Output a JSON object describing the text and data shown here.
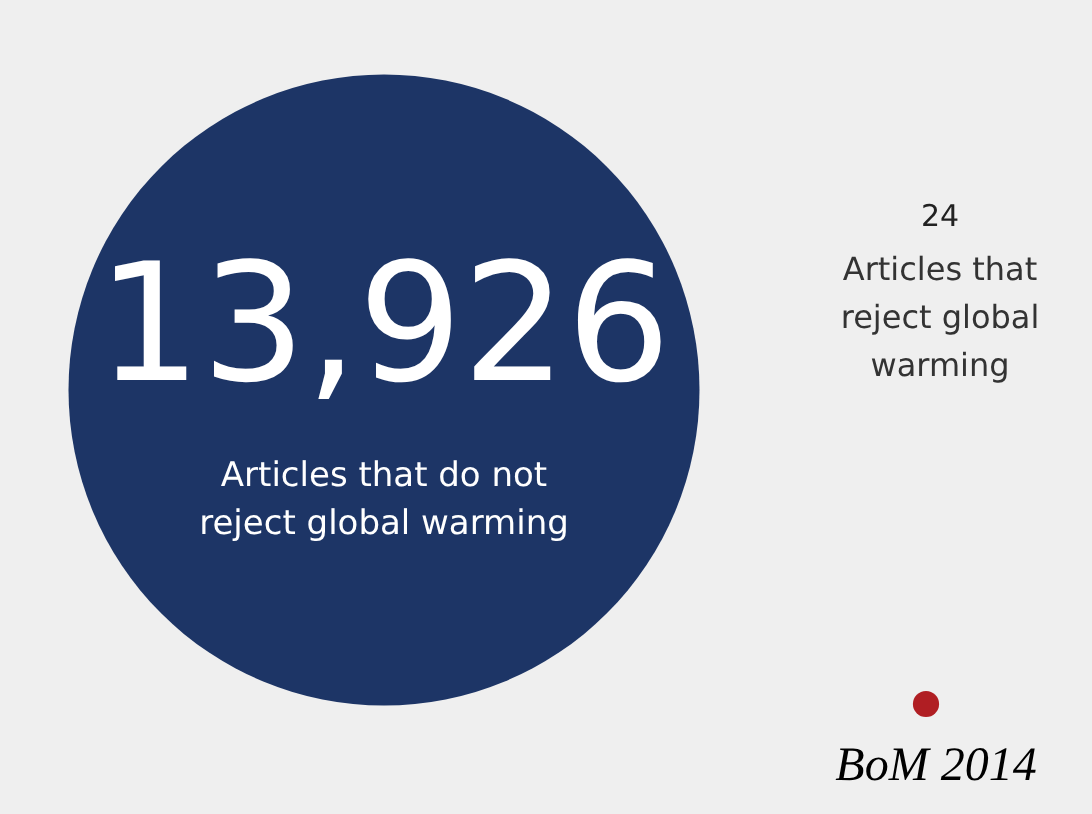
{
  "chart_data": {
    "type": "other",
    "categories": [
      "Articles that do not reject global warming",
      "Articles that reject global warming"
    ],
    "values": [
      13926,
      24
    ],
    "value_labels": [
      "13,926",
      "24"
    ],
    "colors": [
      "#1d3566",
      "#b01e23"
    ],
    "annotations": [
      "BoM 2014"
    ]
  }
}
